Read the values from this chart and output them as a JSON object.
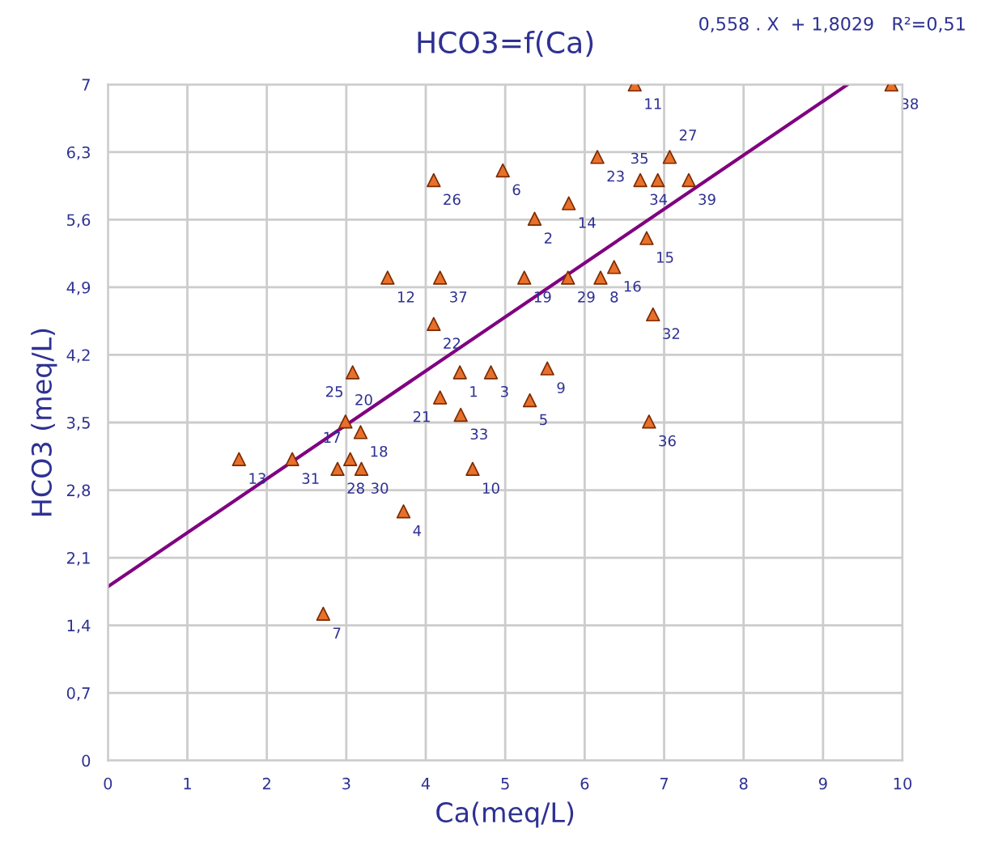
{
  "chart_data": {
    "type": "scatter",
    "title": "HCO3=f(Ca)",
    "xlabel": "Ca(meq/L)",
    "ylabel": "HCO3 (meq/L)",
    "xlim": [
      0,
      10
    ],
    "ylim": [
      0,
      7
    ],
    "xticks": [
      0,
      1,
      2,
      3,
      4,
      5,
      6,
      7,
      8,
      9,
      10
    ],
    "yticks": [
      0,
      {
        "value": 0.7,
        "label": "0,7"
      },
      {
        "value": 1.4,
        "label": "1,4"
      },
      {
        "value": 2.1,
        "label": "2,1"
      },
      {
        "value": 2.8,
        "label": "2,8"
      },
      {
        "value": 3.5,
        "label": "3,5"
      },
      {
        "value": 4.2,
        "label": "4,2"
      },
      {
        "value": 4.9,
        "label": "4,9"
      },
      {
        "value": 5.6,
        "label": "5,6"
      },
      {
        "value": 6.3,
        "label": "6,3"
      },
      7
    ],
    "grid": true,
    "series": [
      {
        "marker": "triangle",
        "color": "#e8702a",
        "x": [
          4.43,
          5.37,
          4.82,
          3.72,
          5.31,
          4.97,
          2.71,
          6.2,
          5.53,
          4.59,
          6.63,
          3.52,
          1.65,
          5.8,
          6.78,
          6.37,
          3.05,
          3.18,
          5.24,
          2.99,
          4.18,
          4.1,
          6.16,
          3.08,
          4.1,
          7.07,
          2.89,
          5.79,
          3.19,
          2.32,
          6.86,
          4.44,
          6.7,
          6.92,
          6.81,
          4.18,
          9.86,
          7.31
        ],
        "values": [
          4.02,
          5.61,
          4.02,
          2.58,
          3.73,
          6.11,
          1.52,
          5.0,
          4.06,
          3.02,
          7.0,
          5.0,
          3.12,
          5.77,
          5.41,
          5.11,
          3.12,
          3.4,
          5.0,
          3.51,
          3.76,
          4.52,
          6.25,
          4.02,
          6.01,
          6.25,
          3.02,
          5.0,
          3.02,
          3.12,
          4.62,
          3.58,
          6.01,
          6.01,
          3.51,
          5.0,
          7.0,
          6.01
        ]
      },
      {
        "type": "line",
        "color": "#800080",
        "x": [
          0,
          9.31
        ],
        "values": [
          1.8,
          7.0
        ]
      }
    ],
    "annotations": [
      "0,558 . X  + 1,8029   R²=0,51",
      {
        "text": "1",
        "x": 4.43,
        "y": 4.02
      },
      {
        "text": "2",
        "x": 5.37,
        "y": 5.61
      },
      {
        "text": "3",
        "x": 4.82,
        "y": 4.02
      },
      {
        "text": "4",
        "x": 3.72,
        "y": 2.58
      },
      {
        "text": "5",
        "x": 5.31,
        "y": 3.73
      },
      {
        "text": "6",
        "x": 4.97,
        "y": 6.11
      },
      {
        "text": "7",
        "x": 2.71,
        "y": 1.52
      },
      {
        "text": "8",
        "x": 6.2,
        "y": 5.0
      },
      {
        "text": "9",
        "x": 5.53,
        "y": 4.06
      },
      {
        "text": "10",
        "x": 4.59,
        "y": 3.02
      },
      {
        "text": "11",
        "x": 6.63,
        "y": 7.0
      },
      {
        "text": "12",
        "x": 3.52,
        "y": 5.0
      },
      {
        "text": "13",
        "x": 1.65,
        "y": 3.12
      },
      {
        "text": "14",
        "x": 5.8,
        "y": 5.77
      },
      {
        "text": "15",
        "x": 6.78,
        "y": 5.41
      },
      {
        "text": "16",
        "x": 6.37,
        "y": 5.11
      },
      {
        "text": "17",
        "x": 3.05,
        "y": 3.12
      },
      {
        "text": "18",
        "x": 3.18,
        "y": 3.4
      },
      {
        "text": "19",
        "x": 5.24,
        "y": 5.0
      },
      {
        "text": "20",
        "x": 2.99,
        "y": 3.51
      },
      {
        "text": "21",
        "x": 4.18,
        "y": 3.76
      },
      {
        "text": "22",
        "x": 4.1,
        "y": 4.52
      },
      {
        "text": "23",
        "x": 6.16,
        "y": 6.25
      },
      {
        "text": "25",
        "x": 3.08,
        "y": 4.02
      },
      {
        "text": "26",
        "x": 4.1,
        "y": 6.01
      },
      {
        "text": "27",
        "x": 7.07,
        "y": 6.25
      },
      {
        "text": "28",
        "x": 2.89,
        "y": 3.02
      },
      {
        "text": "29",
        "x": 5.79,
        "y": 5.0
      },
      {
        "text": "30",
        "x": 3.19,
        "y": 3.02
      },
      {
        "text": "31",
        "x": 2.32,
        "y": 3.12
      },
      {
        "text": "32",
        "x": 6.86,
        "y": 4.62
      },
      {
        "text": "33",
        "x": 4.44,
        "y": 3.58
      },
      {
        "text": "34",
        "x": 6.7,
        "y": 6.01
      },
      {
        "text": "35",
        "x": 6.92,
        "y": 6.01
      },
      {
        "text": "36",
        "x": 6.81,
        "y": 3.51
      },
      {
        "text": "37",
        "x": 4.18,
        "y": 5.0
      },
      {
        "text": "38",
        "x": 9.86,
        "y": 7.0
      },
      {
        "text": "39",
        "x": 7.31,
        "y": 6.01
      }
    ]
  }
}
